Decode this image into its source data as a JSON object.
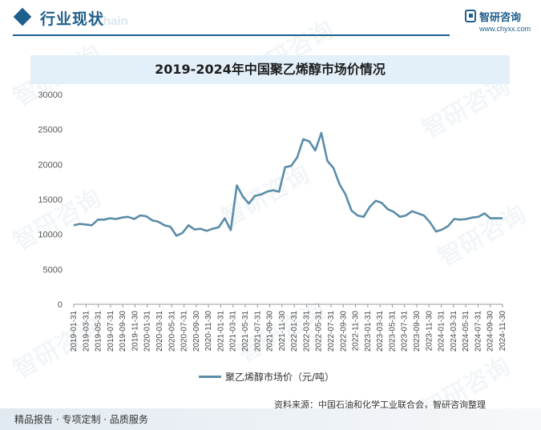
{
  "header": {
    "section_title": "行业现状",
    "section_title_shadow": "Chain",
    "brand_name": "智研咨询",
    "brand_url": "www.chyxx.com"
  },
  "watermark_text": "智研咨询",
  "chart_data": {
    "type": "line",
    "title": "2019-2024年中国聚乙烯醇市场价情况",
    "xlabel": "",
    "ylabel": "",
    "ylim": [
      0,
      30000
    ],
    "yticks": [
      0,
      5000,
      10000,
      15000,
      20000,
      25000,
      30000
    ],
    "x_tick_labels": [
      "2019-01-31",
      "2019-03-31",
      "2019-05-31",
      "2019-07-31",
      "2019-09-30",
      "2019-11-30",
      "2020-01-31",
      "2020-03-31",
      "2020-05-31",
      "2020-07-31",
      "2020-09-30",
      "2020-11-30",
      "2021-01-31",
      "2021-03-31",
      "2021-05-31",
      "2021-07-31",
      "2021-09-30",
      "2021-11-30",
      "2022-01-31",
      "2022-03-31",
      "2022-05-31",
      "2022-07-31",
      "2022-09-30",
      "2022-11-30",
      "2023-01-31",
      "2023-03-31",
      "2023-05-31",
      "2023-07-31",
      "2023-09-30",
      "2023-11-30",
      "2024-01-31",
      "2024-03-31",
      "2024-05-31",
      "2024-07-31",
      "2024-09-30",
      "2024-11-30"
    ],
    "series": [
      {
        "name": "聚乙烯醇市场价（元/吨）",
        "color": "#5b8ca8",
        "values": [
          11300,
          11500,
          11400,
          11300,
          12100,
          12100,
          12300,
          12200,
          12400,
          12500,
          12200,
          12700,
          12600,
          12000,
          11800,
          11300,
          11100,
          9800,
          10200,
          11300,
          10700,
          10800,
          10500,
          10800,
          11000,
          12300,
          10600,
          17000,
          15400,
          14400,
          15500,
          15700,
          16100,
          16300,
          16100,
          19600,
          19800,
          21000,
          23600,
          23300,
          22000,
          24500,
          20500,
          19500,
          17200,
          15700,
          13400,
          12700,
          12500,
          13900,
          14800,
          14500,
          13600,
          13200,
          12500,
          12700,
          13300,
          13000,
          12700,
          11700,
          10400,
          10700,
          11200,
          12200,
          12100,
          12200,
          12400,
          12500,
          13000,
          12300,
          12300,
          12300
        ]
      }
    ]
  },
  "legend": {
    "label": "聚乙烯醇市场价（元/吨）"
  },
  "source": "资料来源：中国石油和化学工业联合会，智研咨询整理",
  "footer": "精品报告 · 专项定制 · 品质服务"
}
